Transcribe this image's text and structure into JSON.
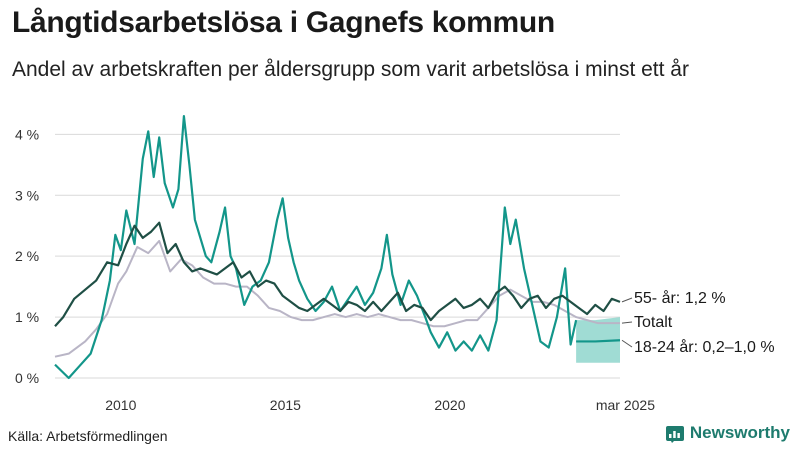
{
  "header": {
    "title": "Långtidsarbetslösa i Gagnefs kommun",
    "subtitle": "Andel av arbetskraften per åldersgrupp som varit arbetslösa i minst ett år"
  },
  "footer": {
    "source": "Källa: Arbetsförmedlingen",
    "brand": "Newsworthy"
  },
  "colors": {
    "age_55": "#1f4f45",
    "total": "#b9b5c6",
    "age_18_24": "#13968a",
    "band": "#8fd6cc",
    "grid": "#d9d9d9"
  },
  "chart_data": {
    "type": "line",
    "x_axis": {
      "min": "2008-01",
      "max": "2025-03",
      "ticks": [
        "2010",
        "2015",
        "2020",
        "mar 2025"
      ]
    },
    "y_axis": {
      "min": 0,
      "max": 4.4,
      "ticks": [
        0,
        1,
        2,
        3,
        4
      ],
      "tick_labels": [
        "0 %",
        "1 %",
        "2 %",
        "3 %",
        "4 %"
      ]
    },
    "grid": "horizontal",
    "series": [
      {
        "key": "age_18_24",
        "label": "18-24 år: 0,2–1,0 %",
        "points": [
          [
            "2008-01",
            0.22
          ],
          [
            "2008-06",
            0.0
          ],
          [
            "2008-10",
            0.2
          ],
          [
            "2009-02",
            0.4
          ],
          [
            "2009-06",
            0.95
          ],
          [
            "2009-09",
            1.6
          ],
          [
            "2009-11",
            2.35
          ],
          [
            "2010-01",
            2.1
          ],
          [
            "2010-03",
            2.75
          ],
          [
            "2010-06",
            2.2
          ],
          [
            "2010-09",
            3.6
          ],
          [
            "2010-11",
            4.05
          ],
          [
            "2011-01",
            3.3
          ],
          [
            "2011-03",
            3.95
          ],
          [
            "2011-05",
            3.2
          ],
          [
            "2011-08",
            2.8
          ],
          [
            "2011-10",
            3.1
          ],
          [
            "2011-12",
            4.3
          ],
          [
            "2012-02",
            3.5
          ],
          [
            "2012-04",
            2.6
          ],
          [
            "2012-06",
            2.3
          ],
          [
            "2012-08",
            2.0
          ],
          [
            "2012-10",
            1.9
          ],
          [
            "2013-01",
            2.4
          ],
          [
            "2013-03",
            2.8
          ],
          [
            "2013-05",
            2.0
          ],
          [
            "2013-07",
            1.8
          ],
          [
            "2013-10",
            1.2
          ],
          [
            "2014-01",
            1.5
          ],
          [
            "2014-04",
            1.6
          ],
          [
            "2014-07",
            1.9
          ],
          [
            "2014-10",
            2.6
          ],
          [
            "2014-12",
            2.95
          ],
          [
            "2015-02",
            2.3
          ],
          [
            "2015-04",
            1.9
          ],
          [
            "2015-06",
            1.6
          ],
          [
            "2015-09",
            1.3
          ],
          [
            "2015-12",
            1.1
          ],
          [
            "2016-03",
            1.25
          ],
          [
            "2016-06",
            1.5
          ],
          [
            "2016-09",
            1.1
          ],
          [
            "2016-12",
            1.3
          ],
          [
            "2017-03",
            1.5
          ],
          [
            "2017-06",
            1.2
          ],
          [
            "2017-09",
            1.4
          ],
          [
            "2017-12",
            1.8
          ],
          [
            "2018-02",
            2.35
          ],
          [
            "2018-04",
            1.7
          ],
          [
            "2018-07",
            1.2
          ],
          [
            "2018-10",
            1.6
          ],
          [
            "2019-01",
            1.35
          ],
          [
            "2019-04",
            1.0
          ],
          [
            "2019-06",
            0.75
          ],
          [
            "2019-09",
            0.5
          ],
          [
            "2019-12",
            0.75
          ],
          [
            "2020-03",
            0.45
          ],
          [
            "2020-06",
            0.6
          ],
          [
            "2020-09",
            0.45
          ],
          [
            "2020-12",
            0.7
          ],
          [
            "2021-03",
            0.45
          ],
          [
            "2021-06",
            0.95
          ],
          [
            "2021-09",
            2.8
          ],
          [
            "2021-11",
            2.2
          ],
          [
            "2022-01",
            2.6
          ],
          [
            "2022-04",
            1.8
          ],
          [
            "2022-07",
            1.2
          ],
          [
            "2022-10",
            0.6
          ],
          [
            "2023-01",
            0.5
          ],
          [
            "2023-04",
            1.0
          ],
          [
            "2023-07",
            1.8
          ],
          [
            "2023-09",
            0.55
          ],
          [
            "2023-11",
            0.95
          ]
        ]
      },
      {
        "key": "total",
        "label": "Totalt",
        "points": [
          [
            "2008-01",
            0.35
          ],
          [
            "2008-06",
            0.4
          ],
          [
            "2008-12",
            0.6
          ],
          [
            "2009-04",
            0.8
          ],
          [
            "2009-08",
            1.05
          ],
          [
            "2009-12",
            1.55
          ],
          [
            "2010-03",
            1.75
          ],
          [
            "2010-07",
            2.15
          ],
          [
            "2010-11",
            2.05
          ],
          [
            "2011-03",
            2.25
          ],
          [
            "2011-07",
            1.75
          ],
          [
            "2011-11",
            1.95
          ],
          [
            "2012-03",
            1.85
          ],
          [
            "2012-07",
            1.65
          ],
          [
            "2012-11",
            1.55
          ],
          [
            "2013-03",
            1.55
          ],
          [
            "2013-07",
            1.5
          ],
          [
            "2013-11",
            1.5
          ],
          [
            "2014-03",
            1.35
          ],
          [
            "2014-07",
            1.15
          ],
          [
            "2014-11",
            1.1
          ],
          [
            "2015-03",
            1.0
          ],
          [
            "2015-07",
            0.95
          ],
          [
            "2015-11",
            0.95
          ],
          [
            "2016-03",
            1.0
          ],
          [
            "2016-07",
            1.05
          ],
          [
            "2016-11",
            1.0
          ],
          [
            "2017-03",
            1.05
          ],
          [
            "2017-07",
            1.0
          ],
          [
            "2017-11",
            1.05
          ],
          [
            "2018-03",
            1.0
          ],
          [
            "2018-07",
            0.95
          ],
          [
            "2018-11",
            0.95
          ],
          [
            "2019-03",
            0.9
          ],
          [
            "2019-07",
            0.85
          ],
          [
            "2019-11",
            0.85
          ],
          [
            "2020-03",
            0.9
          ],
          [
            "2020-07",
            0.95
          ],
          [
            "2020-11",
            0.95
          ],
          [
            "2021-03",
            1.15
          ],
          [
            "2021-07",
            1.35
          ],
          [
            "2021-11",
            1.45
          ],
          [
            "2022-03",
            1.35
          ],
          [
            "2022-07",
            1.25
          ],
          [
            "2022-11",
            1.25
          ],
          [
            "2023-03",
            1.2
          ],
          [
            "2023-07",
            1.1
          ],
          [
            "2023-11",
            1.0
          ],
          [
            "2024-03",
            0.95
          ],
          [
            "2024-07",
            0.9
          ],
          [
            "2024-11",
            0.9
          ],
          [
            "2025-03",
            0.9
          ]
        ]
      },
      {
        "key": "age_55",
        "label": "55- år: 1,2 %",
        "points": [
          [
            "2008-01",
            0.85
          ],
          [
            "2008-04",
            1.0
          ],
          [
            "2008-08",
            1.3
          ],
          [
            "2008-12",
            1.45
          ],
          [
            "2009-04",
            1.6
          ],
          [
            "2009-08",
            1.9
          ],
          [
            "2009-12",
            1.85
          ],
          [
            "2010-03",
            2.2
          ],
          [
            "2010-06",
            2.5
          ],
          [
            "2010-09",
            2.3
          ],
          [
            "2010-12",
            2.4
          ],
          [
            "2011-03",
            2.55
          ],
          [
            "2011-06",
            2.05
          ],
          [
            "2011-09",
            2.2
          ],
          [
            "2011-12",
            1.9
          ],
          [
            "2012-03",
            1.75
          ],
          [
            "2012-06",
            1.8
          ],
          [
            "2012-09",
            1.75
          ],
          [
            "2012-12",
            1.7
          ],
          [
            "2013-03",
            1.8
          ],
          [
            "2013-06",
            1.9
          ],
          [
            "2013-09",
            1.65
          ],
          [
            "2013-12",
            1.75
          ],
          [
            "2014-03",
            1.5
          ],
          [
            "2014-06",
            1.6
          ],
          [
            "2014-09",
            1.55
          ],
          [
            "2014-12",
            1.35
          ],
          [
            "2015-03",
            1.25
          ],
          [
            "2015-06",
            1.15
          ],
          [
            "2015-09",
            1.1
          ],
          [
            "2015-12",
            1.2
          ],
          [
            "2016-03",
            1.3
          ],
          [
            "2016-06",
            1.2
          ],
          [
            "2016-09",
            1.1
          ],
          [
            "2016-12",
            1.25
          ],
          [
            "2017-03",
            1.2
          ],
          [
            "2017-06",
            1.1
          ],
          [
            "2017-09",
            1.25
          ],
          [
            "2017-12",
            1.1
          ],
          [
            "2018-03",
            1.25
          ],
          [
            "2018-06",
            1.4
          ],
          [
            "2018-09",
            1.1
          ],
          [
            "2018-12",
            1.2
          ],
          [
            "2019-03",
            1.15
          ],
          [
            "2019-06",
            0.95
          ],
          [
            "2019-09",
            1.1
          ],
          [
            "2019-12",
            1.2
          ],
          [
            "2020-03",
            1.3
          ],
          [
            "2020-06",
            1.15
          ],
          [
            "2020-09",
            1.2
          ],
          [
            "2020-12",
            1.3
          ],
          [
            "2021-03",
            1.15
          ],
          [
            "2021-06",
            1.4
          ],
          [
            "2021-09",
            1.5
          ],
          [
            "2021-12",
            1.35
          ],
          [
            "2022-03",
            1.15
          ],
          [
            "2022-06",
            1.3
          ],
          [
            "2022-09",
            1.35
          ],
          [
            "2022-12",
            1.15
          ],
          [
            "2023-03",
            1.3
          ],
          [
            "2023-06",
            1.35
          ],
          [
            "2023-09",
            1.25
          ],
          [
            "2023-12",
            1.15
          ],
          [
            "2024-03",
            1.05
          ],
          [
            "2024-06",
            1.2
          ],
          [
            "2024-09",
            1.1
          ],
          [
            "2024-12",
            1.3
          ],
          [
            "2025-03",
            1.25
          ]
        ]
      }
    ],
    "estimate_band": {
      "series": "age_18_24",
      "range": [
        0.2,
        1.0
      ],
      "points": [
        [
          "2023-11",
          0.25,
          0.95
        ],
        [
          "2024-06",
          0.25,
          0.95
        ],
        [
          "2025-03",
          0.25,
          1.0
        ]
      ],
      "center": [
        [
          "2023-11",
          0.6
        ],
        [
          "2024-06",
          0.6
        ],
        [
          "2025-03",
          0.62
        ]
      ]
    },
    "annotations": [
      {
        "key": "age_55",
        "text": "55- år: 1,2 %"
      },
      {
        "key": "total",
        "text": "Totalt"
      },
      {
        "key": "age_18_24",
        "text": "18-24 år: 0,2–1,0 %"
      }
    ]
  }
}
